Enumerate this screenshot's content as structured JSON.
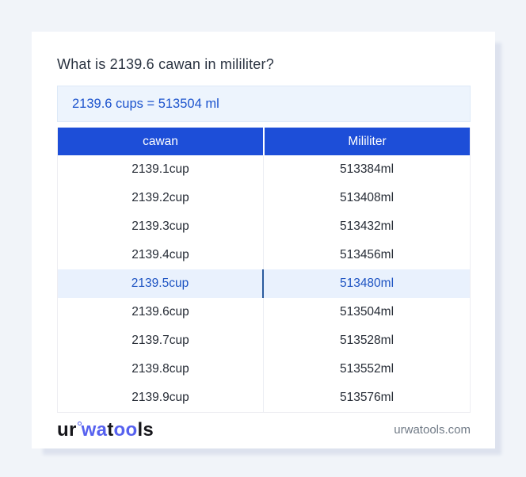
{
  "page": {
    "title": "What is 2139.6 cawan in mililiter?",
    "result_text": "2139.6 cups = 513504 ml"
  },
  "table": {
    "headers": [
      "cawan",
      "Mililiter"
    ],
    "rows": [
      {
        "cawan": "2139.1cup",
        "mililiter": "513384ml",
        "highlighted": false
      },
      {
        "cawan": "2139.2cup",
        "mililiter": "513408ml",
        "highlighted": false
      },
      {
        "cawan": "2139.3cup",
        "mililiter": "513432ml",
        "highlighted": false
      },
      {
        "cawan": "2139.4cup",
        "mililiter": "513456ml",
        "highlighted": false
      },
      {
        "cawan": "2139.5cup",
        "mililiter": "513480ml",
        "highlighted": true
      },
      {
        "cawan": "2139.6cup",
        "mililiter": "513504ml",
        "highlighted": false
      },
      {
        "cawan": "2139.7cup",
        "mililiter": "513528ml",
        "highlighted": false
      },
      {
        "cawan": "2139.8cup",
        "mililiter": "513552ml",
        "highlighted": false
      },
      {
        "cawan": "2139.9cup",
        "mililiter": "513576ml",
        "highlighted": false
      }
    ]
  },
  "footer": {
    "logo_parts": {
      "p1": "ur",
      "p2": "wa",
      "p3": "t",
      "p4": "oo",
      "p5": "ls"
    },
    "site": "urwatools.com"
  },
  "colors": {
    "accent_blue": "#1d4ed8",
    "result_box_bg": "#edf4fd",
    "result_text": "#1c53cd",
    "highlight_row_bg": "#e9f1fd",
    "highlight_row_text": "#1d53c2",
    "highlight_divider": "#2a5a9e",
    "logo_blue": "#5661ef",
    "page_bg": "#f1f4f9",
    "card_shadow": "#dde2ee"
  }
}
